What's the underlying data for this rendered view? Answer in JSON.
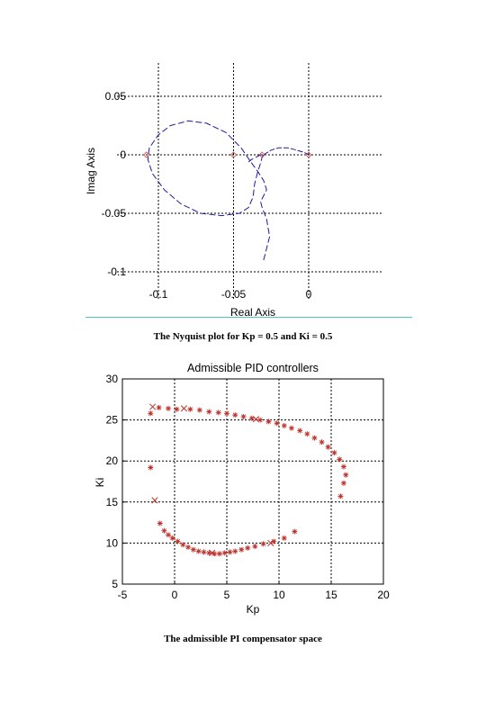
{
  "figures": [
    {
      "caption": "The Nyquist plot for Kp = 0.5 and Ki = 0.5"
    },
    {
      "caption": "The admissible PI compensator space"
    }
  ],
  "chart_data": [
    {
      "type": "line",
      "title": "",
      "xlabel": "Real Axis",
      "ylabel": "Imag Axis",
      "xlim": [
        -0.12,
        0.05
      ],
      "ylim": [
        -0.1,
        0.05
      ],
      "xticks": [
        "-0.1",
        "-0.05",
        "0"
      ],
      "xtick_values": [
        -0.1,
        -0.05,
        0
      ],
      "yticks": [
        "0.05",
        "0",
        "-0.05",
        "-0.1"
      ],
      "ytick_values": [
        0.05,
        0,
        -0.05,
        -0.1
      ],
      "grid": true,
      "line_color": "#1a1aa0",
      "marker_color": "#d04040",
      "series": [
        {
          "values_x": [
            -0.03,
            -0.026,
            -0.028,
            -0.031,
            -0.032,
            -0.03,
            -0.028,
            -0.03,
            -0.034,
            -0.038,
            -0.045,
            -0.055,
            -0.068,
            -0.08,
            -0.092,
            -0.1,
            -0.106,
            -0.107,
            -0.104,
            -0.096,
            -0.085,
            -0.072,
            -0.058,
            -0.046,
            -0.04,
            -0.037,
            -0.036,
            -0.034,
            -0.032,
            -0.031,
            -0.03,
            -0.032,
            -0.035,
            -0.038,
            -0.04
          ],
          "values_y": [
            -0.09,
            -0.07,
            -0.055,
            -0.045,
            -0.04,
            -0.035,
            -0.03,
            -0.022,
            -0.014,
            -0.007,
            0.006,
            0.019,
            0.027,
            0.029,
            0.025,
            0.017,
            0.006,
            -0.004,
            -0.016,
            -0.03,
            -0.042,
            -0.05,
            -0.052,
            -0.05,
            -0.045,
            -0.036,
            -0.025,
            -0.015,
            -0.007,
            -0.002,
            0.0,
            0.0,
            -0.002,
            -0.004,
            -0.006
          ]
        },
        {
          "values_x": [
            -0.03,
            -0.025,
            -0.02,
            -0.014,
            -0.008,
            -0.003,
            0.0
          ],
          "values_y": [
            0.0,
            0.004,
            0.006,
            0.006,
            0.004,
            0.002,
            0.0
          ]
        }
      ],
      "markers": [
        {
          "x": -0.108,
          "y": 0.0
        },
        {
          "x": -0.05,
          "y": 0.0
        },
        {
          "x": -0.031,
          "y": 0.0
        },
        {
          "x": 0.0,
          "y": 0.0
        }
      ]
    },
    {
      "type": "scatter",
      "title": "Admissible PID controllers",
      "xlabel": "Kp",
      "ylabel": "Ki",
      "xlim": [
        -5,
        20
      ],
      "ylim": [
        5,
        30
      ],
      "xticks": [
        "-5",
        "0",
        "5",
        "10",
        "15",
        "20"
      ],
      "xtick_values": [
        -5,
        0,
        5,
        10,
        15,
        20
      ],
      "yticks": [
        "30",
        "25",
        "20",
        "15",
        "10",
        "5"
      ],
      "ytick_values": [
        30,
        25,
        20,
        15,
        10,
        5
      ],
      "grid": true,
      "marker_color": "#c0302a",
      "points_star": [
        [
          -2.3,
          25.8
        ],
        [
          -1.5,
          26.5
        ],
        [
          -0.6,
          26.4
        ],
        [
          0.2,
          26.3
        ],
        [
          1.5,
          26.3
        ],
        [
          2.4,
          26.2
        ],
        [
          3.3,
          26.0
        ],
        [
          4.2,
          25.9
        ],
        [
          5.0,
          25.8
        ],
        [
          5.8,
          25.6
        ],
        [
          6.6,
          25.4
        ],
        [
          7.4,
          25.2
        ],
        [
          8.2,
          25.0
        ],
        [
          9.0,
          24.8
        ],
        [
          9.8,
          24.6
        ],
        [
          10.5,
          24.3
        ],
        [
          11.2,
          24.0
        ],
        [
          12.0,
          23.7
        ],
        [
          12.7,
          23.3
        ],
        [
          13.4,
          22.8
        ],
        [
          14.1,
          22.3
        ],
        [
          14.7,
          21.7
        ],
        [
          15.3,
          21.0
        ],
        [
          15.8,
          20.2
        ],
        [
          16.2,
          19.3
        ],
        [
          16.4,
          18.3
        ],
        [
          16.2,
          17.3
        ],
        [
          15.9,
          15.7
        ],
        [
          -2.3,
          19.2
        ],
        [
          -1.4,
          12.4
        ],
        [
          -1.0,
          11.5
        ],
        [
          -0.6,
          11.0
        ],
        [
          -0.2,
          10.6
        ],
        [
          0.3,
          10.2
        ],
        [
          0.8,
          9.8
        ],
        [
          1.3,
          9.5
        ],
        [
          1.8,
          9.2
        ],
        [
          2.3,
          9.0
        ],
        [
          2.8,
          8.9
        ],
        [
          3.3,
          8.8
        ],
        [
          3.8,
          8.7
        ],
        [
          4.3,
          8.7
        ],
        [
          4.8,
          8.8
        ],
        [
          5.3,
          8.9
        ],
        [
          5.8,
          9.0
        ],
        [
          6.4,
          9.2
        ],
        [
          7.0,
          9.4
        ],
        [
          7.7,
          9.6
        ],
        [
          8.5,
          9.9
        ],
        [
          9.5,
          10.2
        ],
        [
          10.5,
          10.6
        ],
        [
          11.5,
          11.4
        ]
      ],
      "points_x": [
        [
          -1.9,
          15.2
        ],
        [
          -2.1,
          26.6
        ],
        [
          0.9,
          26.4
        ],
        [
          7.8,
          25.1
        ],
        [
          3.6,
          8.8
        ],
        [
          9.2,
          10.0
        ]
      ]
    }
  ]
}
